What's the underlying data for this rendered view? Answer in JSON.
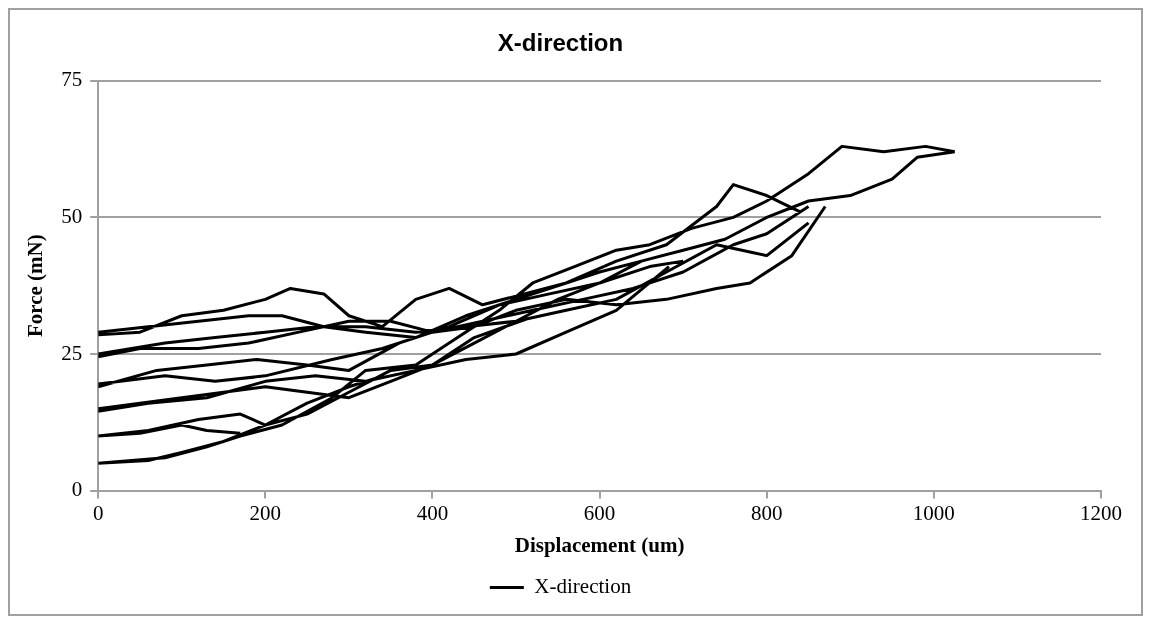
{
  "chart_data": {
    "type": "line",
    "title": "X-direction",
    "xlabel": "Displacement (um)",
    "ylabel": "Force (mN)",
    "xlim": [
      0,
      1200
    ],
    "xticks": [
      0,
      200,
      400,
      600,
      800,
      1000,
      1200
    ],
    "ylim": [
      0,
      75
    ],
    "yticks": [
      0,
      25,
      50,
      75
    ],
    "grid": "y",
    "legend": "bottom",
    "marker": "none",
    "line_style": "solid",
    "series": [
      {
        "name": "X-direction",
        "color": "#000000",
        "x": [
          0,
          60,
          100,
          150,
          200,
          250,
          300,
          350,
          400,
          450,
          500,
          550,
          600,
          650,
          700,
          750,
          800,
          850,
          900,
          950,
          980,
          1025,
          null,
          0,
          80,
          130,
          170,
          220,
          280,
          320,
          380,
          430,
          480,
          520,
          570,
          620,
          660,
          710,
          760,
          800,
          850,
          890,
          940,
          990,
          1025,
          null,
          0,
          50,
          100,
          130,
          170,
          null,
          0,
          60,
          120,
          170,
          200,
          250,
          300,
          341,
          null,
          0,
          50,
          100,
          150,
          200,
          250,
          300,
          350,
          400,
          450,
          514,
          null,
          0,
          60,
          130,
          200,
          260,
          320,
          380,
          440,
          500,
          560,
          620,
          683,
          null,
          0,
          80,
          140,
          200,
          280,
          340,
          400,
          460,
          520,
          580,
          640,
          700,
          760,
          800,
          850,
          null,
          0,
          70,
          130,
          190,
          250,
          300,
          360,
          420,
          480,
          540,
          600,
          660,
          700,
          null,
          0,
          50,
          120,
          180,
          240,
          300,
          350,
          400,
          450,
          500,
          560,
          620,
          680,
          740,
          780,
          830,
          870,
          null,
          0,
          80,
          140,
          200,
          260,
          320,
          380,
          440,
          500,
          560,
          620,
          680,
          740,
          800,
          850,
          null,
          0,
          60,
          120,
          180,
          220,
          270,
          320,
          380,
          440,
          500,
          560,
          620,
          680,
          740,
          760,
          800,
          840,
          null,
          0,
          50,
          100,
          150,
          200,
          230,
          270,
          300,
          340,
          380,
          420,
          460,
          510,
          560,
          600,
          650,
          700
        ],
        "values": [
          5,
          5.5,
          7,
          9,
          12,
          14,
          18,
          22,
          23,
          27,
          31,
          35,
          38,
          42,
          44,
          46,
          50,
          53,
          54,
          57,
          61,
          62,
          null,
          5,
          6,
          8,
          10,
          12,
          17,
          22,
          23,
          28,
          33,
          38,
          41,
          44,
          45,
          48,
          50,
          53,
          58,
          63,
          62,
          63,
          62,
          null,
          10,
          10.5,
          12,
          11,
          10.5,
          null,
          10,
          11,
          13,
          14,
          12,
          16,
          19,
          21,
          null,
          15,
          16,
          17,
          18,
          19,
          18,
          17,
          20,
          23,
          28,
          31.5,
          null,
          14.5,
          16,
          17,
          20,
          21,
          20,
          22,
          24,
          25,
          29,
          33,
          41,
          null,
          19.5,
          21,
          20,
          21,
          24,
          26,
          29,
          31,
          33,
          35,
          37,
          40,
          45,
          47,
          52,
          null,
          19,
          22,
          23,
          24,
          23,
          22,
          27,
          30,
          34,
          36,
          38,
          41,
          42,
          null,
          24.5,
          26,
          26,
          27,
          29,
          31,
          31,
          29,
          30,
          33,
          35,
          34,
          35,
          37,
          38,
          43,
          52,
          null,
          25,
          27,
          28,
          29,
          30,
          30,
          29,
          30,
          31,
          33,
          35,
          40,
          45,
          43,
          49,
          null,
          29,
          30,
          31,
          32,
          32,
          30,
          29,
          28,
          32,
          35,
          38,
          42,
          45,
          52,
          56,
          54,
          51,
          null,
          28.5,
          29,
          32,
          33,
          35,
          37,
          36,
          32,
          30,
          35,
          37,
          34,
          36,
          38,
          40,
          42,
          44
        ]
      }
    ]
  }
}
